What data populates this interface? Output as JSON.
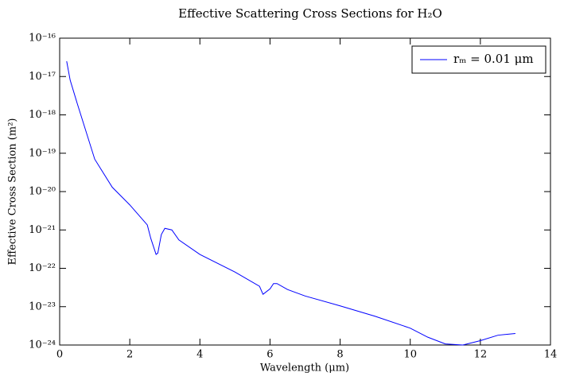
{
  "chart_data": {
    "type": "line",
    "title": "Effective Scattering Cross Sections for H₂O",
    "x_label": "Wavelength (μm)",
    "y_label": "Effective Cross Section (m²)",
    "yscale": "log",
    "xlim": [
      0,
      14
    ],
    "xticks": [
      0,
      2,
      4,
      6,
      8,
      10,
      12,
      14
    ],
    "ylim": [
      1e-24,
      1e-16
    ],
    "yticks": [
      {
        "value": 1e-24,
        "label": "10⁻²⁴"
      },
      {
        "value": 1e-23,
        "label": "10⁻²³"
      },
      {
        "value": 1e-22,
        "label": "10⁻²²"
      },
      {
        "value": 1e-21,
        "label": "10⁻²¹"
      },
      {
        "value": 1e-20,
        "label": "10⁻²⁰"
      },
      {
        "value": 1e-19,
        "label": "10⁻¹⁹"
      },
      {
        "value": 1e-18,
        "label": "10⁻¹⁸"
      },
      {
        "value": 1e-17,
        "label": "10⁻¹⁷"
      },
      {
        "value": 1e-16,
        "label": "10⁻¹⁶"
      }
    ],
    "legend_position": "upper right",
    "series": [
      {
        "name": "rₘ = 0.01 μm",
        "color": "#0000ff",
        "x": [
          0.2,
          0.3,
          0.5,
          1,
          1.5,
          2,
          2.5,
          2.6,
          2.75,
          2.8,
          2.9,
          3.0,
          3.2,
          3.4,
          4,
          5,
          5.7,
          5.8,
          6.0,
          6.1,
          6.2,
          6.5,
          7,
          8,
          9,
          10,
          10.5,
          11,
          11.5,
          12,
          12.5,
          13
        ],
        "values": [
          2.5e-17,
          8e-18,
          2e-18,
          7e-20,
          1.3e-20,
          4.5e-21,
          1.35e-21,
          6e-22,
          2.3e-22,
          2.5e-22,
          7.6e-22,
          1.1e-21,
          1e-21,
          5.5e-22,
          2.3e-22,
          8e-23,
          3.4e-23,
          2.1e-23,
          2.9e-23,
          4e-23,
          4e-23,
          2.8e-23,
          1.9e-23,
          1.05e-23,
          5.6e-24,
          2.75e-24,
          1.6e-24,
          1.07e-24,
          1e-24,
          1.3e-24,
          1.8e-24,
          2e-24
        ]
      }
    ]
  }
}
